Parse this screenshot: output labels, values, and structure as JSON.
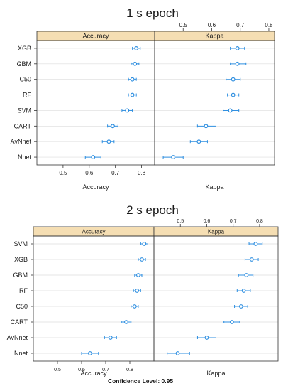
{
  "chart_data": [
    {
      "type": "scatter",
      "title": "1 s epoch",
      "categories": [
        "XGB",
        "GBM",
        "C50",
        "RF",
        "SVM",
        "CART",
        "AvNnet",
        "Nnet"
      ],
      "panels": [
        {
          "name": "Accuracy",
          "xlabel": "Accuracy",
          "xlim": [
            0.4,
            0.85
          ],
          "ticks": [
            "0.5",
            "0.6",
            "0.7",
            "0.8"
          ],
          "tick_position": "bottom",
          "estimates": [
            0.78,
            0.775,
            0.765,
            0.765,
            0.745,
            0.69,
            0.675,
            0.615
          ],
          "lower": [
            0.765,
            0.76,
            0.75,
            0.75,
            0.725,
            0.67,
            0.65,
            0.585
          ],
          "upper": [
            0.795,
            0.79,
            0.78,
            0.78,
            0.765,
            0.71,
            0.695,
            0.645
          ]
        },
        {
          "name": "Kappa",
          "xlabel": "Kappa",
          "xlim": [
            0.4,
            0.82
          ],
          "ticks": [
            "0.5",
            "0.6",
            "0.7",
            "0.8"
          ],
          "tick_position": "top",
          "estimates": [
            0.69,
            0.69,
            0.675,
            0.675,
            0.665,
            0.58,
            0.555,
            0.465
          ],
          "lower": [
            0.665,
            0.665,
            0.65,
            0.655,
            0.64,
            0.55,
            0.525,
            0.43
          ],
          "upper": [
            0.715,
            0.72,
            0.7,
            0.695,
            0.695,
            0.615,
            0.585,
            0.5
          ]
        }
      ]
    },
    {
      "type": "scatter",
      "title": "2 s epoch",
      "categories": [
        "SVM",
        "XGB",
        "GBM",
        "RF",
        "C50",
        "CART",
        "AvNnet",
        "Nnet"
      ],
      "panels": [
        {
          "name": "Accuracy",
          "xlabel": "Accuracy",
          "xlim": [
            0.4,
            0.9
          ],
          "ticks": [
            "0.5",
            "0.6",
            "0.7",
            "0.8"
          ],
          "tick_position": "bottom",
          "estimates": [
            0.86,
            0.85,
            0.835,
            0.83,
            0.82,
            0.785,
            0.72,
            0.635
          ],
          "lower": [
            0.845,
            0.835,
            0.82,
            0.815,
            0.805,
            0.765,
            0.695,
            0.6
          ],
          "upper": [
            0.875,
            0.865,
            0.85,
            0.845,
            0.835,
            0.805,
            0.745,
            0.67
          ]
        },
        {
          "name": "Kappa",
          "xlabel": "Kappa",
          "xlim": [
            0.4,
            0.87
          ],
          "ticks": [
            "0.5",
            "0.6",
            "0.7",
            "0.8"
          ],
          "tick_position": "top",
          "estimates": [
            0.785,
            0.77,
            0.75,
            0.74,
            0.73,
            0.695,
            0.6,
            0.49
          ],
          "lower": [
            0.76,
            0.745,
            0.72,
            0.715,
            0.705,
            0.665,
            0.565,
            0.45
          ],
          "upper": [
            0.81,
            0.795,
            0.775,
            0.765,
            0.755,
            0.725,
            0.635,
            0.535
          ]
        }
      ]
    }
  ],
  "footer": {
    "confidence_label": "Confidence Level: 0.95"
  },
  "colors": {
    "point": "#2f8fe0",
    "strip": "#f5deb3",
    "grid": "#dcdcdc",
    "frame": "#333333"
  }
}
